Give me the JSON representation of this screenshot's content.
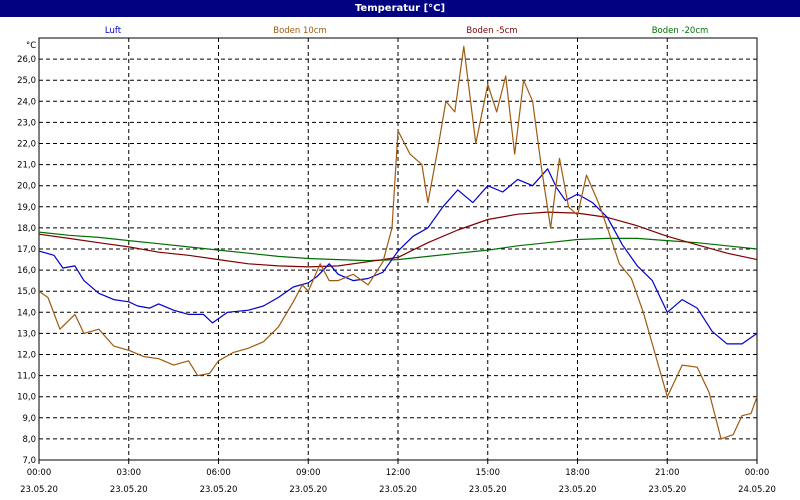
{
  "window": {
    "title": "Temperatur [°C]"
  },
  "chart_data": {
    "type": "line",
    "title": "Temperatur [°C]",
    "ylabel": "°C",
    "xlabel": "",
    "ylim": [
      7.0,
      27.0
    ],
    "yticks": [
      "7,0",
      "8,0",
      "9,0",
      "10,0",
      "11,0",
      "12,0",
      "13,0",
      "14,0",
      "15,0",
      "16,0",
      "17,0",
      "18,0",
      "19,0",
      "20,0",
      "21,0",
      "22,0",
      "23,0",
      "24,0",
      "25,0",
      "26,0"
    ],
    "x_unit": "hours since 23.05.20 00:00",
    "xlim": [
      0,
      24
    ],
    "xticks": [
      {
        "time": "00:00",
        "date": "23.05.20"
      },
      {
        "time": "03:00",
        "date": "23.05.20"
      },
      {
        "time": "06:00",
        "date": "23.05.20"
      },
      {
        "time": "09:00",
        "date": "23.05.20"
      },
      {
        "time": "12:00",
        "date": "23.05.20"
      },
      {
        "time": "15:00",
        "date": "23.05.20"
      },
      {
        "time": "18:00",
        "date": "23.05.20"
      },
      {
        "time": "21:00",
        "date": "23.05.20"
      },
      {
        "time": "00:00",
        "date": "24.05.20"
      }
    ],
    "grid": true,
    "legend_position": "top",
    "series": [
      {
        "name": "Luft",
        "color": "#0000CC",
        "points": [
          [
            0,
            16.9
          ],
          [
            0.5,
            16.7
          ],
          [
            0.8,
            16.1
          ],
          [
            1.2,
            16.2
          ],
          [
            1.5,
            15.5
          ],
          [
            2,
            14.9
          ],
          [
            2.5,
            14.6
          ],
          [
            3,
            14.5
          ],
          [
            3.3,
            14.3
          ],
          [
            3.7,
            14.2
          ],
          [
            4,
            14.4
          ],
          [
            4.5,
            14.1
          ],
          [
            5,
            13.9
          ],
          [
            5.5,
            13.9
          ],
          [
            5.8,
            13.5
          ],
          [
            6.3,
            14.0
          ],
          [
            7,
            14.1
          ],
          [
            7.5,
            14.3
          ],
          [
            8,
            14.7
          ],
          [
            8.5,
            15.2
          ],
          [
            9,
            15.4
          ],
          [
            9.3,
            15.7
          ],
          [
            9.7,
            16.3
          ],
          [
            10,
            15.8
          ],
          [
            10.5,
            15.5
          ],
          [
            11,
            15.6
          ],
          [
            11.5,
            15.9
          ],
          [
            12,
            16.9
          ],
          [
            12.5,
            17.6
          ],
          [
            13,
            18.0
          ],
          [
            13.5,
            19.0
          ],
          [
            14,
            19.8
          ],
          [
            14.5,
            19.2
          ],
          [
            15,
            20.0
          ],
          [
            15.5,
            19.7
          ],
          [
            16,
            20.3
          ],
          [
            16.5,
            20.0
          ],
          [
            17,
            20.8
          ],
          [
            17.3,
            19.9
          ],
          [
            17.6,
            19.3
          ],
          [
            18,
            19.6
          ],
          [
            18.5,
            19.2
          ],
          [
            19,
            18.5
          ],
          [
            19.5,
            17.2
          ],
          [
            20,
            16.2
          ],
          [
            20.5,
            15.5
          ],
          [
            21,
            14.0
          ],
          [
            21.5,
            14.6
          ],
          [
            22,
            14.2
          ],
          [
            22.5,
            13.1
          ],
          [
            23,
            12.5
          ],
          [
            23.5,
            12.5
          ],
          [
            24,
            13.0
          ]
        ]
      },
      {
        "name": "Boden 10cm",
        "color": "#A05A10",
        "points": [
          [
            0,
            15.0
          ],
          [
            0.3,
            14.7
          ],
          [
            0.7,
            13.2
          ],
          [
            1.2,
            13.9
          ],
          [
            1.5,
            13.0
          ],
          [
            2,
            13.2
          ],
          [
            2.5,
            12.4
          ],
          [
            3,
            12.2
          ],
          [
            3.5,
            11.9
          ],
          [
            4,
            11.8
          ],
          [
            4.5,
            11.5
          ],
          [
            5,
            11.7
          ],
          [
            5.3,
            11.0
          ],
          [
            5.7,
            11.1
          ],
          [
            6,
            11.7
          ],
          [
            6.5,
            12.1
          ],
          [
            7,
            12.3
          ],
          [
            7.5,
            12.6
          ],
          [
            8,
            13.3
          ],
          [
            8.5,
            14.5
          ],
          [
            8.8,
            15.3
          ],
          [
            9,
            15.0
          ],
          [
            9.4,
            16.3
          ],
          [
            9.7,
            15.5
          ],
          [
            10,
            15.5
          ],
          [
            10.5,
            15.8
          ],
          [
            11,
            15.3
          ],
          [
            11.5,
            16.4
          ],
          [
            11.8,
            18.0
          ],
          [
            12,
            22.6
          ],
          [
            12.4,
            21.5
          ],
          [
            12.8,
            21.0
          ],
          [
            13,
            19.2
          ],
          [
            13.3,
            21.5
          ],
          [
            13.6,
            24.0
          ],
          [
            13.9,
            23.5
          ],
          [
            14.2,
            26.6
          ],
          [
            14.6,
            22.0
          ],
          [
            15,
            24.8
          ],
          [
            15.3,
            23.5
          ],
          [
            15.6,
            25.2
          ],
          [
            15.9,
            21.5
          ],
          [
            16.2,
            25.0
          ],
          [
            16.5,
            24.0
          ],
          [
            16.8,
            20.8
          ],
          [
            17.1,
            18.0
          ],
          [
            17.4,
            21.3
          ],
          [
            17.7,
            19.0
          ],
          [
            18,
            18.6
          ],
          [
            18.3,
            20.5
          ],
          [
            18.7,
            19.2
          ],
          [
            19,
            18.0
          ],
          [
            19.4,
            16.3
          ],
          [
            19.8,
            15.6
          ],
          [
            20.2,
            14.0
          ],
          [
            20.6,
            12.0
          ],
          [
            21,
            10.0
          ],
          [
            21.5,
            11.5
          ],
          [
            22,
            11.4
          ],
          [
            22.4,
            10.2
          ],
          [
            22.8,
            8.0
          ],
          [
            23.2,
            8.2
          ],
          [
            23.5,
            9.1
          ],
          [
            23.8,
            9.2
          ],
          [
            24,
            10.0
          ]
        ]
      },
      {
        "name": "Boden -5cm",
        "color": "#800000",
        "points": [
          [
            0,
            17.7
          ],
          [
            1,
            17.5
          ],
          [
            2,
            17.3
          ],
          [
            3,
            17.1
          ],
          [
            4,
            16.85
          ],
          [
            5,
            16.7
          ],
          [
            6,
            16.5
          ],
          [
            7,
            16.3
          ],
          [
            8,
            16.2
          ],
          [
            9,
            16.15
          ],
          [
            10,
            16.2
          ],
          [
            11,
            16.4
          ],
          [
            12,
            16.6
          ],
          [
            13,
            17.3
          ],
          [
            14,
            17.9
          ],
          [
            15,
            18.4
          ],
          [
            16,
            18.65
          ],
          [
            17,
            18.75
          ],
          [
            18,
            18.7
          ],
          [
            19,
            18.5
          ],
          [
            20,
            18.1
          ],
          [
            21,
            17.6
          ],
          [
            22,
            17.2
          ],
          [
            23,
            16.8
          ],
          [
            24,
            16.5
          ]
        ]
      },
      {
        "name": "Boden -20cm",
        "color": "#007000",
        "points": [
          [
            0,
            17.8
          ],
          [
            1,
            17.65
          ],
          [
            2,
            17.55
          ],
          [
            3,
            17.4
          ],
          [
            4,
            17.25
          ],
          [
            5,
            17.1
          ],
          [
            6,
            16.95
          ],
          [
            7,
            16.8
          ],
          [
            8,
            16.65
          ],
          [
            9,
            16.55
          ],
          [
            10,
            16.5
          ],
          [
            11,
            16.45
          ],
          [
            12,
            16.5
          ],
          [
            13,
            16.65
          ],
          [
            14,
            16.8
          ],
          [
            15,
            16.95
          ],
          [
            16,
            17.15
          ],
          [
            17,
            17.3
          ],
          [
            18,
            17.45
          ],
          [
            19,
            17.5
          ],
          [
            20,
            17.5
          ],
          [
            21,
            17.4
          ],
          [
            22,
            17.3
          ],
          [
            23,
            17.15
          ],
          [
            24,
            17.0
          ]
        ]
      }
    ]
  }
}
